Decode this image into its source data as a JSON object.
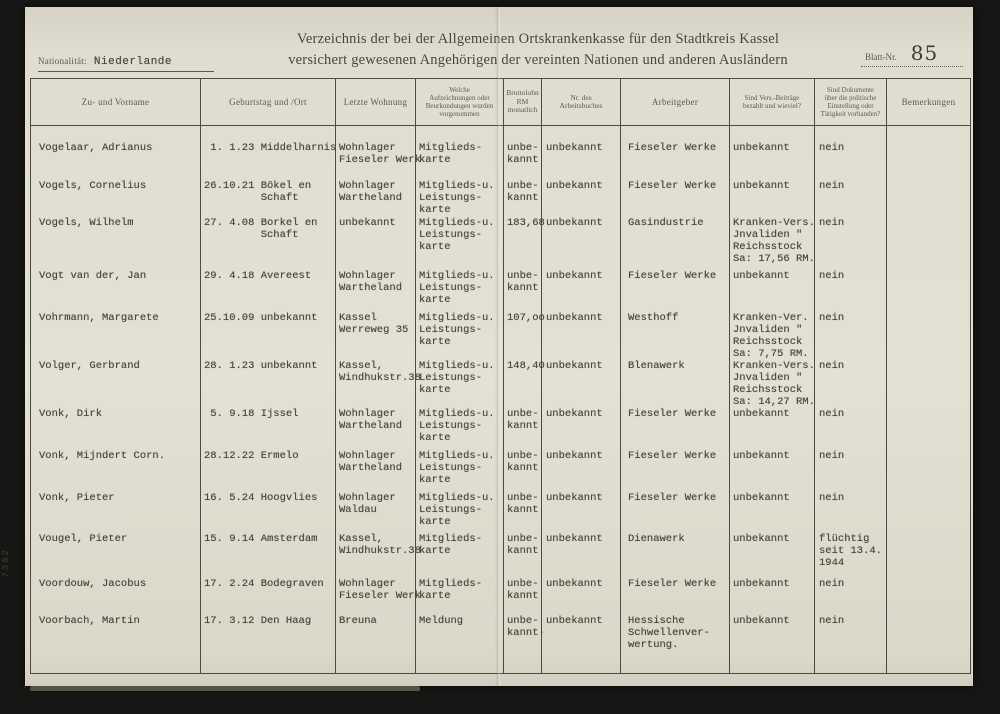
{
  "page": {
    "nationality_label": "Nationalität:",
    "nationality_value": "Niederlande",
    "title_line1": "Verzeichnis der bei der Allgemeinen Ortskrankenkasse für den Stadtkreis Kassel",
    "title_line2": "versichert gewesenen Angehörigen der vereinten Nationen und anderen Ausländern",
    "sheet_label": "Blatt-Nr.",
    "sheet_number": "85",
    "margin_note": "7382"
  },
  "table": {
    "headers": [
      "Zu- und Vorname",
      "Geburtstag und /Ort",
      "Letzte Wohnung",
      "Welche\nAufzeichnungen oder\nBeurkundungen wurden\nvorgenommen",
      "Bruttolohn\nRM\nmonatlich",
      "Nr. des\nArbeitsbuches",
      "Arbeitgeber",
      "Sind Vers.-Beiträge\nbezahlt und wieviel?",
      "Sind Dokumente\nüber die politische\nEinstellung oder\nTätigkeit vorhanden?",
      "Bemerkungen"
    ],
    "rows": [
      {
        "cells": [
          "Vogelaar, Adrianus",
          " 1. 1.23 Middelharnis",
          "Wohnlager\nFieseler Werk",
          "Mitglieds-\nkarte",
          "unbe-\nkannt",
          "unbekannt",
          "Fieseler Werke",
          "unbekannt",
          "nein",
          ""
        ]
      },
      {
        "cells": [
          "Vogels, Cornelius",
          "26.10.21 Bökel en\n         Schaft",
          "Wohnlager\nWartheland",
          "Mitglieds-u.\nLeistungs-\nkarte",
          "unbe-\nkannt",
          "unbekannt",
          "Fieseler Werke",
          "unbekannt",
          "nein",
          ""
        ]
      },
      {
        "cells": [
          "Vogels, Wilhelm",
          "27. 4.08 Borkel en\n         Schaft",
          "unbekannt",
          "Mitglieds-u.\nLeistungs-\nkarte",
          "183,68",
          "unbekannt",
          "Gasindustrie",
          "Kranken-Vers.\nJnvaliden \"\nReichsstock\nSa: 17,56 RM.",
          "nein",
          ""
        ]
      },
      {
        "cells": [
          "Vogt van der, Jan",
          "29. 4.18 Avereest",
          "Wohnlager\nWartheland",
          "Mitglieds-u.\nLeistungs-\nkarte",
          "unbe-\nkannt",
          "unbekannt",
          "Fieseler Werke",
          "unbekannt",
          "nein",
          ""
        ]
      },
      {
        "cells": [
          "Vohrmann, Margarete",
          "25.10.09 unbekannt",
          "Kassel\nWerreweg 35",
          "Mitglieds-u.\nLeistungs-\nkarte",
          "107,oo",
          "unbekannt",
          "Westhoff",
          "Kranken-Ver.\nJnvaliden \"\nReichsstock\nSa: 7,75 RM.",
          "nein",
          ""
        ]
      },
      {
        "cells": [
          "Volger, Gerbrand",
          "28. 1.23 unbekannt",
          "Kassel,\nWindhukstr.38",
          "Mitglieds-u.\nLeistungs-\nkarte",
          "148,40",
          "unbekannt",
          "Blenawerk",
          "Kranken-Vers.\nJnvaliden \"\nReichsstock\nSa: 14,27 RM.",
          "nein",
          ""
        ]
      },
      {
        "cells": [
          "Vonk, Dirk",
          " 5. 9.18 Ijssel",
          "Wohnlager\nWartheland",
          "Mitglieds-u.\nLeistungs-\nkarte",
          "unbe-\nkannt",
          "unbekannt",
          "Fieseler Werke",
          "unbekannt",
          "nein",
          ""
        ]
      },
      {
        "cells": [
          "Vonk, Mijndert Corn.",
          "28.12.22 Ermelo",
          "Wohnlager\nWartheland",
          "Mitglieds-u.\nLeistungs-\nkarte",
          "unbe-\nkannt",
          "unbekannt",
          "Fieseler Werke",
          "unbekannt",
          "nein",
          ""
        ]
      },
      {
        "cells": [
          "Vonk, Pieter",
          "16. 5.24 Hoogvlies",
          "Wohnlager\nWaldau",
          "Mitglieds-u.\nLeistungs-\nkarte",
          "unbe-\nkannt",
          "unbekannt",
          "Fieseler Werke",
          "unbekannt",
          "nein",
          ""
        ]
      },
      {
        "cells": [
          "Vougel, Pieter",
          "15. 9.14 Amsterdam",
          "Kassel,\nWindhukstr.38",
          "Mitglieds-\nkarte",
          "unbe-\nkannt",
          "unbekannt",
          "Dienawerk",
          "unbekannt",
          "flüchtig\nseit 13.4.\n1944",
          ""
        ]
      },
      {
        "cells": [
          "Voordouw, Jacobus",
          "17. 2.24 Bodegraven",
          "Wohnlager\nFieseler Werk",
          "Mitglieds-\nkarte",
          "unbe-\nkannt",
          "unbekannt",
          "Fieseler Werke",
          "unbekannt",
          "nein",
          ""
        ]
      },
      {
        "cells": [
          "Voorbach, Martin",
          "17. 3.12 Den Haag",
          "Breuna",
          "Meldung",
          "unbe-\nkannt·",
          "unbekannt",
          "Hessische\nSchwellenver-\nwertung.",
          "unbekannt",
          "nein",
          ""
        ]
      }
    ]
  },
  "colors": {
    "paper": "#e2dfd3",
    "ink": "#4a4739",
    "line": "#4f4c3f",
    "frame": "#161614"
  }
}
